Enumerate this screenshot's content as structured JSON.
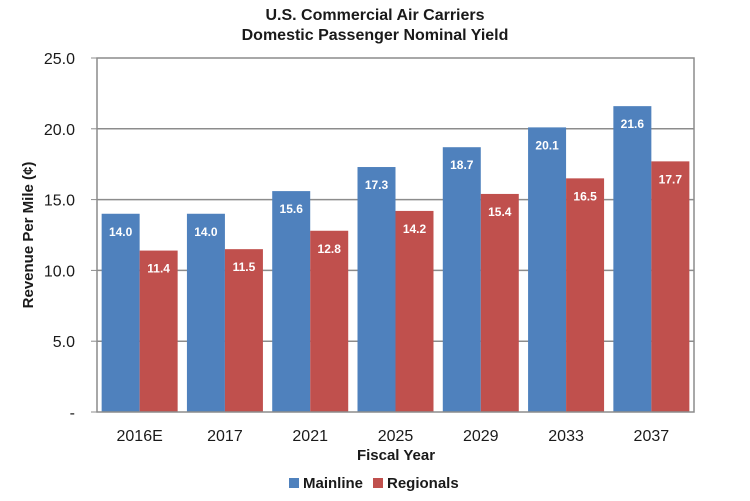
{
  "chart_data": {
    "type": "bar",
    "title": [
      "U.S. Commercial Air Carriers",
      "Domestic Passenger Nominal Yield"
    ],
    "xlabel": "Fiscal Year",
    "ylabel": "Revenue Per Mile (¢)",
    "categories": [
      "2016E",
      "2017",
      "2021",
      "2025",
      "2029",
      "2033",
      "2037"
    ],
    "series": [
      {
        "name": "Mainline",
        "color": "#4f81bd",
        "values": [
          14.0,
          14.0,
          15.6,
          17.3,
          18.7,
          20.1,
          21.6
        ]
      },
      {
        "name": "Regionals",
        "color": "#c0504d",
        "values": [
          11.4,
          11.5,
          12.8,
          14.2,
          15.4,
          16.5,
          17.7
        ]
      }
    ],
    "ylim": [
      0,
      25
    ],
    "yticks": [
      0,
      5,
      10,
      15,
      20,
      25
    ],
    "ytick_labels": [
      "-",
      "5.0",
      "10.0",
      "15.0",
      "20.0",
      "25.0"
    ],
    "grid": true,
    "data_labels": true,
    "legend": "bottom-center"
  }
}
